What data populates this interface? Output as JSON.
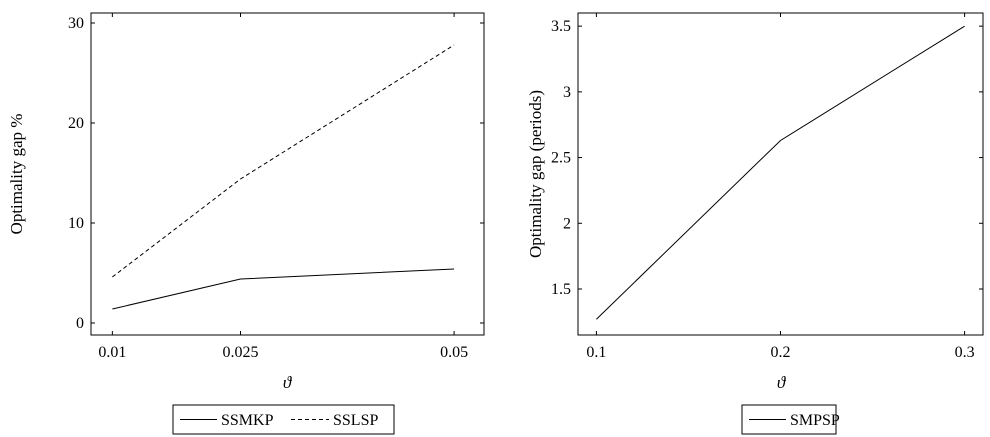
{
  "chart_data": [
    {
      "type": "line",
      "title": "",
      "xlabel": "ϑ",
      "ylabel": "Optimality gap %",
      "x": [
        0.01,
        0.025,
        0.05
      ],
      "x_tick_labels": [
        "0.01",
        "0.025",
        "0.05"
      ],
      "xlim": [
        0.0075,
        0.0535
      ],
      "ylim": [
        -1.2,
        31
      ],
      "y_ticks": [
        0,
        10,
        20,
        30
      ],
      "y_tick_labels": [
        "0",
        "10",
        "20",
        "30"
      ],
      "legend_position": "bottom-center",
      "grid": false,
      "series": [
        {
          "name": "SSMKP",
          "values": [
            1.4,
            4.4,
            5.4
          ],
          "style": "solid"
        },
        {
          "name": "SSLSP",
          "values": [
            4.6,
            14.4,
            27.8
          ],
          "style": "dashed"
        }
      ]
    },
    {
      "type": "line",
      "title": "",
      "xlabel": "ϑ",
      "ylabel": "Optimality gap (periods)",
      "x": [
        0.1,
        0.2,
        0.3
      ],
      "x_tick_labels": [
        "0.1",
        "0.2",
        "0.3"
      ],
      "xlim": [
        0.09,
        0.31
      ],
      "ylim": [
        1.15,
        3.6
      ],
      "y_ticks": [
        1.5,
        2,
        2.5,
        3,
        3.5
      ],
      "y_tick_labels": [
        "1.5",
        "2",
        "2.5",
        "3",
        "3.5"
      ],
      "legend_position": "bottom-center",
      "grid": false,
      "series": [
        {
          "name": "SMPSP",
          "values": [
            1.27,
            2.63,
            3.5
          ],
          "style": "solid"
        }
      ]
    }
  ]
}
